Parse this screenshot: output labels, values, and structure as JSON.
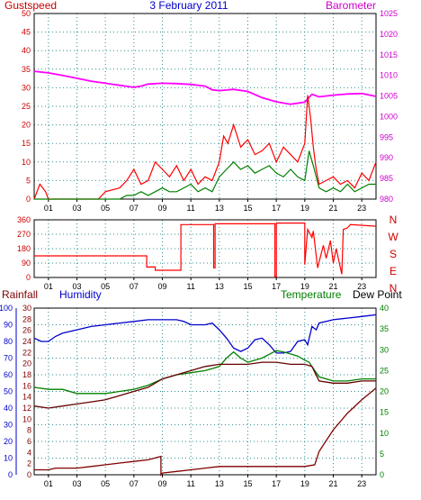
{
  "chart_data": [
    {
      "type": "line",
      "title": "3 February 2011",
      "left_label": "Gustspeed",
      "right_label": "Barometer",
      "left_axis": {
        "ylim": [
          0,
          50
        ],
        "ticks": [
          "0",
          "5",
          "10",
          "15",
          "20",
          "25",
          "30",
          "35",
          "40",
          "45",
          "50"
        ]
      },
      "right_axis": {
        "ylim": [
          980,
          1025
        ],
        "ticks": [
          "980",
          "985",
          "990",
          "995",
          "1000",
          "1005",
          "1010",
          "1015",
          "1020",
          "1025"
        ]
      },
      "x_ticks": [
        "01",
        "03",
        "05",
        "07",
        "09",
        "11",
        "13",
        "15",
        "17",
        "19",
        "21",
        "23"
      ],
      "grid": true,
      "colors": {
        "title": "#0000cc",
        "left_label": "#cc0000",
        "right_label": "#cc00cc",
        "left_ticks": "#cc0000",
        "right_ticks": "#cc00cc",
        "gust": "#ff0000",
        "wind": "#008000",
        "barometer": "#ff00ff"
      },
      "series": [
        {
          "key": "barometer",
          "axis": "right",
          "x": [
            0,
            1,
            2,
            3,
            4,
            5,
            6,
            7,
            7.5,
            8,
            9,
            10,
            11,
            12,
            12.5,
            13,
            14,
            15,
            16,
            17,
            18,
            19,
            19.5,
            20,
            21,
            22,
            23,
            24
          ],
          "y": [
            1011,
            1010.6,
            1010,
            1009.3,
            1008.6,
            1008.1,
            1007.6,
            1007.1,
            1007.4,
            1007.9,
            1008.1,
            1008.0,
            1007.8,
            1007.4,
            1006.5,
            1006.3,
            1006.6,
            1006.1,
            1004.6,
            1003.6,
            1003.0,
            1003.5,
            1005.4,
            1004.8,
            1005.2,
            1005.5,
            1005.6,
            1004.9
          ]
        },
        {
          "key": "gust",
          "axis": "left",
          "x": [
            0,
            0.4,
            0.8,
            1,
            2,
            3,
            4,
            4.5,
            5,
            6,
            6.5,
            7,
            7.5,
            8,
            8.5,
            9,
            9.5,
            10,
            10.5,
            11,
            11.5,
            12,
            12.5,
            13,
            13.3,
            13.6,
            14,
            14.5,
            15,
            15.5,
            16,
            16.5,
            17,
            17.5,
            18,
            18.5,
            19,
            19.2,
            19.4,
            19.6,
            19.8,
            20,
            20.5,
            21,
            21.5,
            22,
            22.5,
            23,
            23.5,
            24
          ],
          "y": [
            0,
            4,
            2,
            0,
            0,
            0,
            0,
            0,
            2,
            3,
            5,
            8,
            4,
            5,
            10,
            8,
            6,
            9,
            5,
            8,
            4,
            6,
            5,
            10,
            17,
            15,
            20,
            14,
            16,
            12,
            13,
            15,
            10,
            14,
            12,
            10,
            15,
            28,
            22,
            14,
            8,
            4,
            5,
            6,
            4,
            5,
            3,
            7,
            5,
            10
          ]
        },
        {
          "key": "wind",
          "axis": "left",
          "x": [
            0,
            1,
            2,
            3,
            4,
            5,
            6,
            6.5,
            7,
            7.5,
            8,
            8.5,
            9,
            9.5,
            10,
            10.5,
            11,
            11.5,
            12,
            12.5,
            13,
            13.5,
            14,
            14.5,
            15,
            15.5,
            16,
            16.5,
            17,
            17.5,
            18,
            18.5,
            19,
            19.3,
            19.6,
            20,
            20.5,
            21,
            21.5,
            22,
            22.5,
            23,
            23.5,
            24
          ],
          "y": [
            0,
            0,
            0,
            0,
            0,
            0,
            0,
            1,
            1,
            2,
            1,
            2,
            3,
            2,
            2,
            3,
            4,
            2,
            3,
            2,
            6,
            8,
            10,
            8,
            9,
            7,
            8,
            9,
            7,
            6,
            8,
            6,
            5,
            13,
            9,
            3,
            2,
            3,
            2,
            4,
            2,
            3,
            4,
            4
          ]
        }
      ]
    },
    {
      "type": "line",
      "left_ticks": [
        "0",
        "90",
        "180",
        "270",
        "360"
      ],
      "right_labels": [
        "N",
        "W",
        "S",
        "E",
        "N"
      ],
      "ylim": [
        0,
        360
      ],
      "x_ticks": [
        "01",
        "03",
        "05",
        "07",
        "09",
        "11",
        "13",
        "15",
        "17",
        "19",
        "21",
        "23"
      ],
      "colors": {
        "direction": "#ff0000",
        "left_ticks": "#cc0000",
        "right_labels": "#cc0000"
      },
      "series": [
        {
          "key": "direction",
          "x": [
            0,
            7.9,
            7.9,
            8.5,
            8.5,
            10.3,
            10.3,
            12.6,
            12.6,
            12.7,
            12.7,
            16.9,
            16.9,
            17,
            17,
            19,
            19,
            19.2,
            19.5,
            19.6,
            19.9,
            20.3,
            20.5,
            20.8,
            21,
            21.2,
            21.5,
            21.6,
            21.7,
            22,
            22.2,
            24
          ],
          "y": [
            135,
            135,
            65,
            65,
            45,
            45,
            330,
            330,
            60,
            60,
            335,
            335,
            5,
            5,
            340,
            340,
            80,
            300,
            250,
            290,
            60,
            200,
            120,
            230,
            90,
            180,
            60,
            20,
            300,
            310,
            330,
            320
          ]
        }
      ]
    },
    {
      "type": "line",
      "labels": {
        "rainfall": "Rainfall",
        "humidity": "Humidity",
        "temperature": "Temperature",
        "dewpoint": "Dew Point"
      },
      "rainfall_axis": {
        "ylim": [
          0,
          100
        ],
        "ticks": [
          "0",
          "10",
          "20",
          "30",
          "40",
          "50",
          "60",
          "70",
          "80",
          "90",
          "100"
        ]
      },
      "humidity_axis": {
        "ylim": [
          0,
          30
        ],
        "ticks": [
          "0",
          "2",
          "4",
          "6",
          "8",
          "10",
          "12",
          "14",
          "16",
          "18",
          "20",
          "22",
          "24",
          "26",
          "28",
          "30"
        ]
      },
      "temperature_axis": {
        "ylim": [
          0,
          40
        ],
        "ticks": [
          "0",
          "5",
          "10",
          "15",
          "20",
          "25",
          "30",
          "35",
          "40"
        ]
      },
      "x_ticks": [
        "01",
        "03",
        "05",
        "07",
        "09",
        "11",
        "13",
        "15",
        "17",
        "19",
        "21",
        "23"
      ],
      "colors": {
        "rainfall": "#800000",
        "humidity": "#0000cc",
        "temperature": "#008000",
        "dewpoint": "#660000",
        "rainfall_ticks": "#0000cc",
        "humidity_ticks": "#800000",
        "temperature_ticks": "#008000",
        "rainfall_label": "#800000",
        "humidity_label": "#0000cc",
        "temperature_label": "#008000",
        "dewpoint_label": "#000000"
      },
      "series": [
        {
          "key": "humidity",
          "axis": "rainfall",
          "x": [
            0,
            0.5,
            1,
            1.5,
            2,
            3,
            4,
            5,
            6,
            7,
            8,
            9,
            10,
            10.5,
            11,
            12,
            12.5,
            13,
            13.5,
            14,
            14.5,
            15,
            15.5,
            16,
            16.5,
            17,
            17.5,
            18,
            18.5,
            19,
            19.2,
            19.5,
            19.8,
            20,
            21,
            22,
            23,
            24
          ],
          "y": [
            82,
            80,
            80,
            83,
            85,
            87,
            89,
            90,
            91,
            92,
            93,
            93,
            93,
            92,
            90,
            90,
            91,
            87,
            82,
            76,
            74,
            76,
            81,
            82,
            78,
            73,
            73,
            74,
            80,
            81,
            78,
            89,
            87,
            91,
            93,
            94,
            95,
            96
          ]
        },
        {
          "key": "temperature",
          "axis": "temperature",
          "x": [
            0,
            1,
            2,
            3,
            4,
            5,
            6,
            7,
            8,
            9,
            10,
            11,
            12,
            12.5,
            13,
            13.5,
            14,
            14.5,
            15,
            16,
            17,
            17.5,
            18,
            18.5,
            19,
            19.3,
            19.7,
            20,
            21,
            22,
            23,
            24
          ],
          "y": [
            21,
            20.5,
            20.5,
            19.5,
            19.5,
            19.5,
            20,
            20.5,
            21.5,
            23,
            24,
            24.5,
            25,
            25.5,
            26,
            28,
            29.5,
            28,
            27,
            28,
            29.8,
            29.5,
            29,
            28.5,
            27.5,
            27,
            25,
            23.5,
            22.5,
            22.5,
            23,
            23
          ]
        },
        {
          "key": "dewpoint",
          "axis": "temperature",
          "x": [
            0,
            1,
            2,
            3,
            4,
            5,
            6,
            7,
            8,
            9,
            10,
            11,
            12,
            13,
            14,
            15,
            16,
            17,
            18,
            19,
            19.5,
            20,
            21,
            22,
            23,
            24
          ],
          "y": [
            16.5,
            16,
            16.5,
            17,
            17.5,
            18,
            19,
            20,
            21,
            23,
            24,
            25,
            26,
            26.5,
            26.5,
            26.5,
            27,
            27,
            26.5,
            26.5,
            26,
            22.5,
            22,
            22,
            22.5,
            22.5
          ]
        },
        {
          "key": "rainfall",
          "axis": "rainfall",
          "x": [
            0,
            1,
            1.5,
            2,
            3,
            4,
            5,
            6,
            7,
            8,
            8.9,
            8.9,
            9,
            10,
            11,
            12,
            13,
            14,
            15,
            16,
            17,
            18,
            19,
            19.7,
            20,
            21,
            22,
            23,
            24
          ],
          "y": [
            3,
            3,
            4,
            4,
            4,
            5,
            6,
            7,
            8,
            9,
            11,
            0,
            1,
            2,
            3,
            4,
            5,
            5,
            5,
            5,
            5,
            5,
            5,
            6,
            14,
            27,
            37,
            45,
            52
          ]
        }
      ]
    }
  ]
}
